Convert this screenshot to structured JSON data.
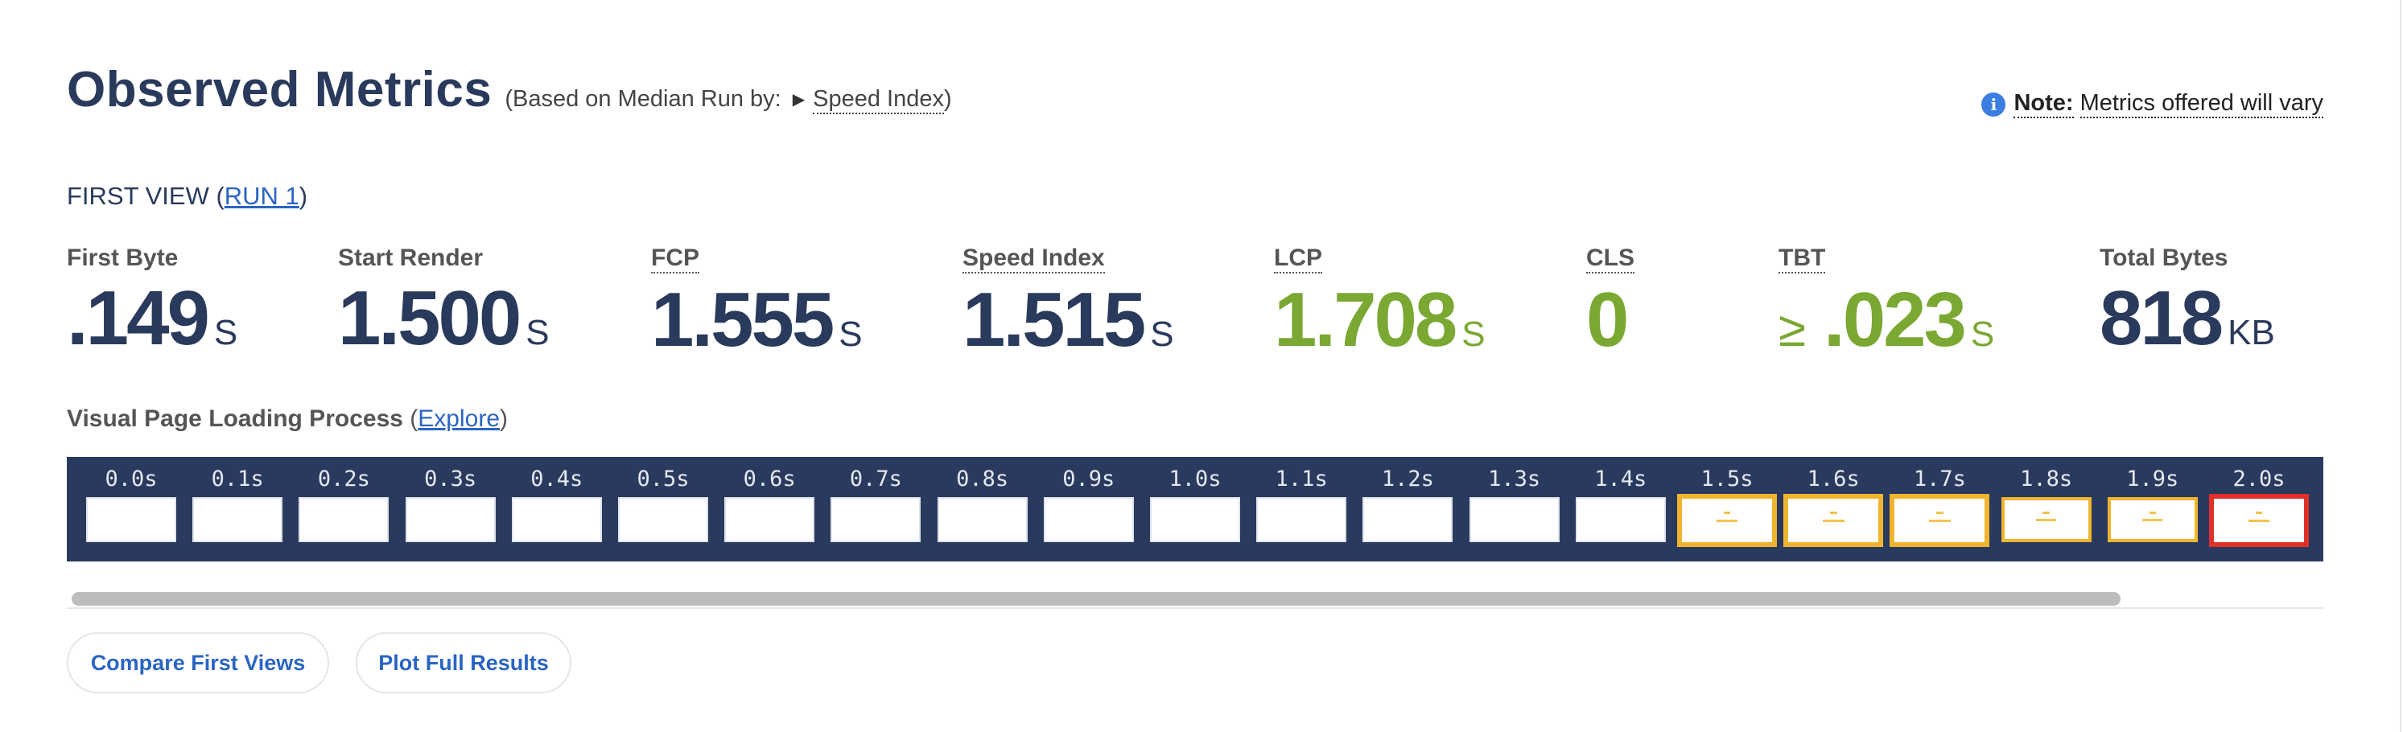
{
  "header": {
    "title": "Observed Metrics",
    "based_on_prefix": "(Based on Median Run by:",
    "based_on_metric": "Speed Index",
    "based_on_suffix": ")"
  },
  "note": {
    "icon": "info-icon",
    "bold": "Note:",
    "text": "Metrics offered will vary"
  },
  "first_view": {
    "label": "FIRST VIEW (",
    "run_link": "RUN 1",
    "close": ")"
  },
  "metrics": [
    {
      "label": "First Byte",
      "value": ".149",
      "unit": "S",
      "prefix": ""
    },
    {
      "label": "Start Render",
      "value": "1.500",
      "unit": "S",
      "prefix": ""
    },
    {
      "label": "FCP",
      "value": "1.555",
      "unit": "S",
      "prefix": ""
    },
    {
      "label": "Speed Index",
      "value": "1.515",
      "unit": "S",
      "prefix": ""
    },
    {
      "label": "LCP",
      "value": "1.708",
      "unit": "S",
      "prefix": ""
    },
    {
      "label": "CLS",
      "value": "0",
      "unit": "",
      "prefix": ""
    },
    {
      "label": "TBT",
      "value": ".023",
      "unit": "S",
      "prefix": "≥"
    },
    {
      "label": "Total Bytes",
      "value": "818",
      "unit": "KB",
      "prefix": ""
    }
  ],
  "colors": {
    "good": "#7aa832",
    "neutral": "#2a3a5c",
    "filmstrip_bg": "#2a3a5e",
    "changed_frame": "#f0b42e",
    "lcp_frame": "#e0302a",
    "link": "#2a65c4"
  },
  "visual": {
    "label": "Visual Page Loading Process",
    "open": "(",
    "explore_link": "Explore",
    "close": ")"
  },
  "filmstrip": {
    "frames": [
      {
        "time": "0.0s",
        "state": "blank"
      },
      {
        "time": "0.1s",
        "state": "blank"
      },
      {
        "time": "0.2s",
        "state": "blank"
      },
      {
        "time": "0.3s",
        "state": "blank"
      },
      {
        "time": "0.4s",
        "state": "blank"
      },
      {
        "time": "0.5s",
        "state": "blank"
      },
      {
        "time": "0.6s",
        "state": "blank"
      },
      {
        "time": "0.7s",
        "state": "blank"
      },
      {
        "time": "0.8s",
        "state": "blank"
      },
      {
        "time": "0.9s",
        "state": "blank"
      },
      {
        "time": "1.0s",
        "state": "blank"
      },
      {
        "time": "1.1s",
        "state": "blank"
      },
      {
        "time": "1.2s",
        "state": "blank"
      },
      {
        "time": "1.3s",
        "state": "blank"
      },
      {
        "time": "1.4s",
        "state": "blank"
      },
      {
        "time": "1.5s",
        "state": "changed"
      },
      {
        "time": "1.6s",
        "state": "changed"
      },
      {
        "time": "1.7s",
        "state": "changed"
      },
      {
        "time": "1.8s",
        "state": "partial"
      },
      {
        "time": "1.9s",
        "state": "partial"
      },
      {
        "time": "2.0s",
        "state": "lcp"
      }
    ]
  },
  "buttons": {
    "compare": "Compare First Views",
    "plot": "Plot Full Results"
  }
}
